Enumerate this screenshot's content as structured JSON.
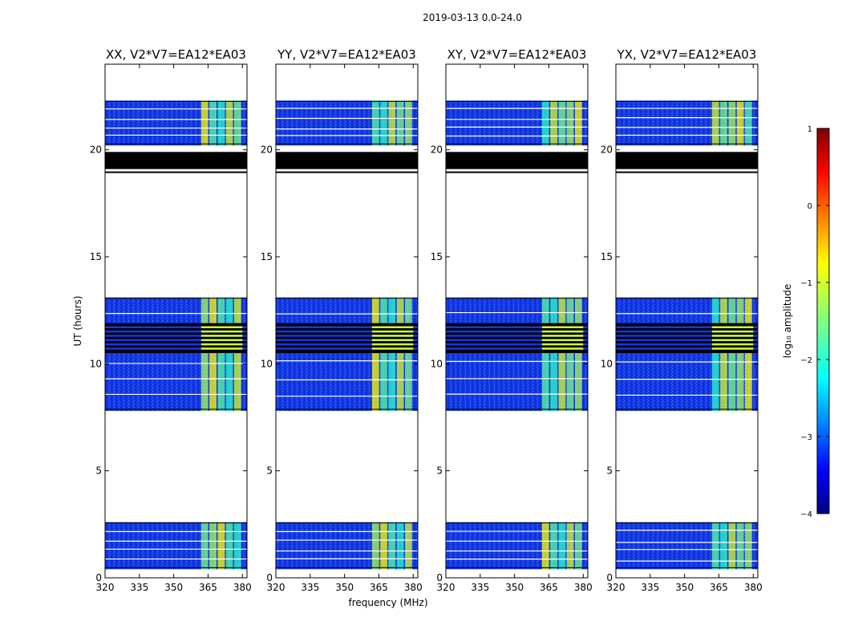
{
  "chart_data": {
    "type": "heatmap",
    "suptitle": "2019-03-13 0.0-24.0",
    "xlabel": "frequency (MHz)",
    "ylabel": "UT (hours)",
    "xlim": [
      320,
      382
    ],
    "ylim": [
      0,
      24
    ],
    "xticks": [
      320,
      335,
      350,
      365,
      380
    ],
    "yticks": [
      0,
      5,
      10,
      15,
      20
    ],
    "panels": [
      {
        "title": "XX, V2*V7=EA12*EA03",
        "pol": "XX"
      },
      {
        "title": "YY, V2*V7=EA12*EA03",
        "pol": "YY"
      },
      {
        "title": "XY, V2*V7=EA12*EA03",
        "pol": "XY"
      },
      {
        "title": "YX, V2*V7=EA12*EA03",
        "pol": "YX"
      }
    ],
    "data_time_ranges": [
      [
        0.4,
        2.6
      ],
      [
        7.8,
        13.1
      ],
      [
        20.2,
        22.3
      ]
    ],
    "blanked_time_ranges": [
      [
        19.1,
        19.9
      ],
      [
        10.5,
        11.9
      ]
    ],
    "signal_freq_band": [
      362,
      380
    ],
    "colorbar": {
      "label": "log₁₀ amplitude",
      "range": [
        -4,
        1
      ],
      "ticks": [
        "1",
        "0",
        "−1",
        "−2",
        "−3",
        "−4"
      ],
      "tick_values": [
        1,
        0,
        -1,
        -2,
        -3,
        -4
      ],
      "colormap": "jet"
    }
  }
}
